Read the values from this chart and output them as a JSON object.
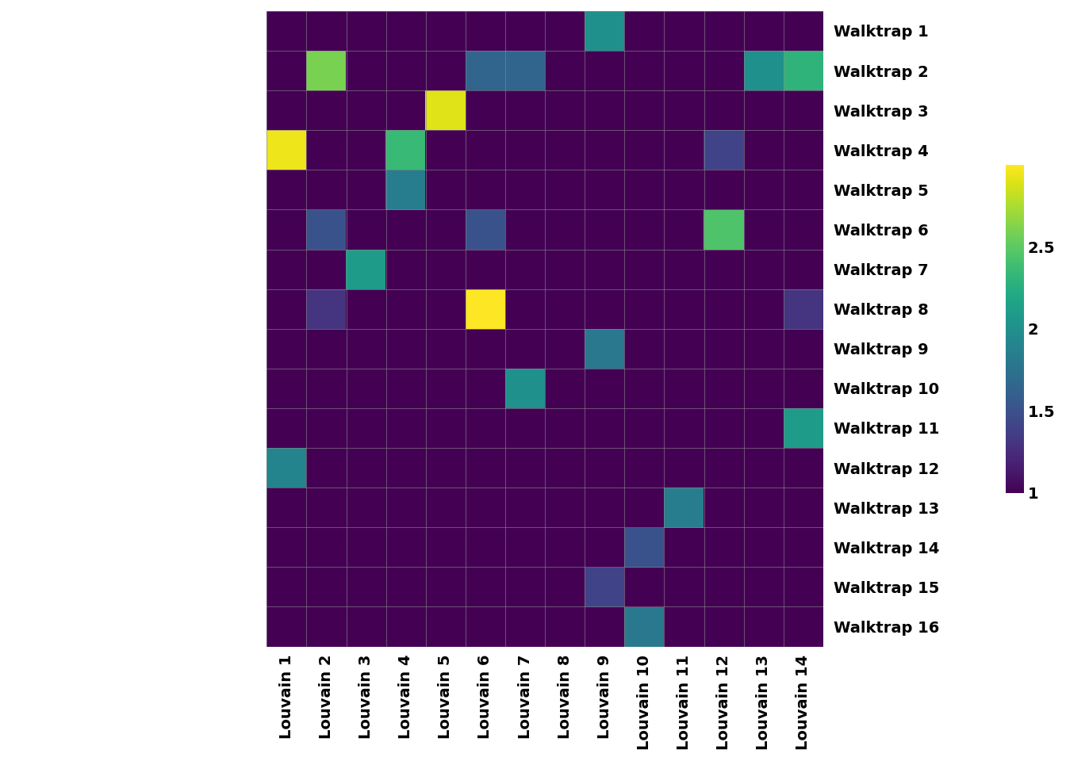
{
  "walktrap_labels": [
    "Walktrap 1",
    "Walktrap 2",
    "Walktrap 3",
    "Walktrap 4",
    "Walktrap 5",
    "Walktrap 6",
    "Walktrap 7",
    "Walktrap 8",
    "Walktrap 9",
    "Walktrap 10",
    "Walktrap 11",
    "Walktrap 12",
    "Walktrap 13",
    "Walktrap 14",
    "Walktrap 15",
    "Walktrap 16"
  ],
  "louvain_labels": [
    "Louvain 1",
    "Louvain 2",
    "Louvain 3",
    "Louvain 4",
    "Louvain 5",
    "Louvain 6",
    "Louvain 7",
    "Louvain 8",
    "Louvain 9",
    "Louvain 10",
    "Louvain 11",
    "Louvain 12",
    "Louvain 13",
    "Louvain 14"
  ],
  "matrix": [
    [
      1.0,
      1.0,
      1.0,
      1.0,
      1.0,
      1.0,
      1.0,
      1.0,
      2.0,
      1.0,
      1.0,
      1.0,
      1.0,
      1.0
    ],
    [
      1.0,
      2.6,
      1.0,
      1.0,
      1.0,
      1.65,
      1.65,
      1.0,
      1.0,
      1.0,
      1.0,
      1.0,
      2.0,
      2.3
    ],
    [
      1.0,
      1.0,
      1.0,
      1.0,
      2.9,
      1.0,
      1.0,
      1.0,
      1.0,
      1.0,
      1.0,
      1.0,
      1.0,
      1.0
    ],
    [
      2.95,
      1.0,
      1.0,
      2.35,
      1.0,
      1.0,
      1.0,
      1.0,
      1.0,
      1.0,
      1.0,
      1.4,
      1.0,
      1.0
    ],
    [
      1.0,
      1.0,
      1.0,
      1.85,
      1.0,
      1.0,
      1.0,
      1.0,
      1.0,
      1.0,
      1.0,
      1.0,
      1.0,
      1.0
    ],
    [
      1.0,
      1.5,
      1.0,
      1.0,
      1.0,
      1.5,
      1.0,
      1.0,
      1.0,
      1.0,
      1.0,
      2.45,
      1.0,
      1.0
    ],
    [
      1.0,
      1.0,
      2.1,
      1.0,
      1.0,
      1.0,
      1.0,
      1.0,
      1.0,
      1.0,
      1.0,
      1.0,
      1.0,
      1.0
    ],
    [
      1.0,
      1.3,
      1.0,
      1.0,
      1.0,
      3.0,
      1.0,
      1.0,
      1.0,
      1.0,
      1.0,
      1.0,
      1.0,
      1.3
    ],
    [
      1.0,
      1.0,
      1.0,
      1.0,
      1.0,
      1.0,
      1.0,
      1.0,
      1.8,
      1.0,
      1.0,
      1.0,
      1.0,
      1.0
    ],
    [
      1.0,
      1.0,
      1.0,
      1.0,
      1.0,
      1.0,
      2.0,
      1.0,
      1.0,
      1.0,
      1.0,
      1.0,
      1.0,
      1.0
    ],
    [
      1.0,
      1.0,
      1.0,
      1.0,
      1.0,
      1.0,
      1.0,
      1.0,
      1.0,
      1.0,
      1.0,
      1.0,
      1.0,
      2.1
    ],
    [
      1.9,
      1.0,
      1.0,
      1.0,
      1.0,
      1.0,
      1.0,
      1.0,
      1.0,
      1.0,
      1.0,
      1.0,
      1.0,
      1.0
    ],
    [
      1.0,
      1.0,
      1.0,
      1.0,
      1.0,
      1.0,
      1.0,
      1.0,
      1.0,
      1.0,
      1.85,
      1.0,
      1.0,
      1.0
    ],
    [
      1.0,
      1.0,
      1.0,
      1.0,
      1.0,
      1.0,
      1.0,
      1.0,
      1.0,
      1.5,
      1.0,
      1.0,
      1.0,
      1.0
    ],
    [
      1.0,
      1.0,
      1.0,
      1.0,
      1.0,
      1.0,
      1.0,
      1.0,
      1.4,
      1.0,
      1.0,
      1.0,
      1.0,
      1.0
    ],
    [
      1.0,
      1.0,
      1.0,
      1.0,
      1.0,
      1.0,
      1.0,
      1.0,
      1.0,
      1.8,
      1.0,
      1.0,
      1.0,
      1.0
    ]
  ],
  "cmap": "viridis",
  "vmin": 1.0,
  "vmax": 3.0,
  "colorbar_ticks": [
    1.0,
    1.5,
    2.0,
    2.5
  ],
  "colorbar_tick_labels": [
    "1",
    "1.5",
    "2",
    "2.5"
  ],
  "grid_color": "#888888",
  "background_color": "#ffffff",
  "figsize": [
    13.44,
    9.6
  ],
  "dpi": 100,
  "tick_fontsize": 14,
  "colorbar_fontsize": 14,
  "label_fontweight": "bold"
}
